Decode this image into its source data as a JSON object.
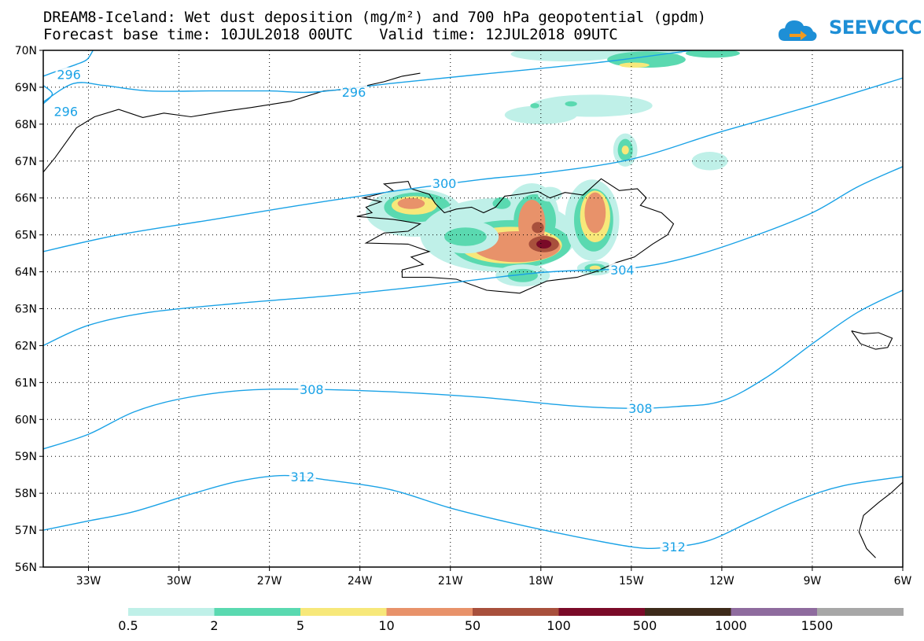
{
  "title": {
    "line1": "DREAM8-Iceland: Wet dust deposition (mg/m²) and 700 hPa geopotential (gpdm)",
    "line2": "Forecast base time: 10JUL2018 00UTC   Valid time: 12JUL2018 09UTC"
  },
  "logo": {
    "text": "SEEVCCC",
    "icon": "cloud-with-arrow-icon",
    "color": "#1e8fd6"
  },
  "map": {
    "lon_range": [
      -34.5,
      -6
    ],
    "lat_range": [
      56,
      70
    ],
    "lat_ticks": [
      "56N",
      "57N",
      "58N",
      "59N",
      "60N",
      "61N",
      "62N",
      "63N",
      "64N",
      "65N",
      "66N",
      "67N",
      "68N",
      "69N",
      "70N"
    ],
    "lon_ticks": [
      "33W",
      "30W",
      "27W",
      "24W",
      "21W",
      "18W",
      "15W",
      "12W",
      "9W",
      "6W"
    ],
    "grid": "dotted",
    "contour_color": "#1aa2e6",
    "contours": [
      {
        "level": "296",
        "points": [
          [
            -34.5,
            68.6
          ],
          [
            -33.5,
            69.1
          ],
          [
            -32.5,
            69.05
          ],
          [
            -31,
            68.9
          ],
          [
            -29,
            68.9
          ],
          [
            -27,
            68.9
          ],
          [
            -25.5,
            68.87
          ],
          [
            -23,
            69.1
          ],
          [
            -20,
            69.35
          ],
          [
            -16,
            69.68
          ],
          [
            -13,
            70
          ]
        ]
      },
      {
        "level": "296",
        "points": [
          [
            -34.5,
            69.3
          ],
          [
            -34,
            69.45
          ],
          [
            -33.4,
            69.62
          ],
          [
            -33.05,
            69.75
          ],
          [
            -32.85,
            70
          ]
        ]
      },
      {
        "level": "296",
        "points": [
          [
            -34.5,
            68.55
          ],
          [
            -34.2,
            68.82
          ],
          [
            -34.5,
            69.05
          ]
        ]
      },
      {
        "level": "300",
        "points": [
          [
            -34.5,
            64.55
          ],
          [
            -32,
            65.0
          ],
          [
            -29,
            65.4
          ],
          [
            -26,
            65.8
          ],
          [
            -23,
            66.17
          ],
          [
            -20,
            66.5
          ],
          [
            -18,
            66.67
          ],
          [
            -15,
            67.05
          ],
          [
            -12,
            67.8
          ],
          [
            -9,
            68.5
          ],
          [
            -6,
            69.25
          ]
        ]
      },
      {
        "level": "304",
        "points": [
          [
            -34.5,
            62.0
          ],
          [
            -33,
            62.55
          ],
          [
            -31,
            62.9
          ],
          [
            -28,
            63.15
          ],
          [
            -25,
            63.35
          ],
          [
            -22,
            63.6
          ],
          [
            -18,
            63.98
          ],
          [
            -15,
            64.1
          ],
          [
            -13,
            64.42
          ],
          [
            -11,
            64.95
          ],
          [
            -9,
            65.6
          ],
          [
            -7.5,
            66.3
          ],
          [
            -6,
            66.85
          ]
        ]
      },
      {
        "level": "308",
        "points": [
          [
            -34.5,
            59.2
          ],
          [
            -33,
            59.6
          ],
          [
            -31.5,
            60.2
          ],
          [
            -30,
            60.55
          ],
          [
            -28,
            60.78
          ],
          [
            -26,
            60.82
          ],
          [
            -23,
            60.75
          ],
          [
            -20,
            60.6
          ],
          [
            -17,
            60.37
          ],
          [
            -15,
            60.3
          ],
          [
            -13.5,
            60.35
          ],
          [
            -12,
            60.5
          ],
          [
            -10.5,
            61.15
          ],
          [
            -9,
            62.05
          ],
          [
            -7.5,
            62.9
          ],
          [
            -6,
            63.5
          ]
        ]
      },
      {
        "level": "312",
        "points": [
          [
            -34.5,
            57.0
          ],
          [
            -33,
            57.25
          ],
          [
            -31.5,
            57.5
          ],
          [
            -29.5,
            58.0
          ],
          [
            -28,
            58.33
          ],
          [
            -26.5,
            58.48
          ],
          [
            -25,
            58.35
          ],
          [
            -23,
            58.1
          ],
          [
            -21,
            57.6
          ],
          [
            -19,
            57.2
          ],
          [
            -17,
            56.85
          ],
          [
            -15,
            56.55
          ],
          [
            -14,
            56.52
          ],
          [
            -12.5,
            56.7
          ],
          [
            -11,
            57.25
          ],
          [
            -9.5,
            57.8
          ],
          [
            -8,
            58.2
          ],
          [
            -6,
            58.45
          ]
        ]
      }
    ],
    "contour_labels": [
      {
        "text": "296",
        "lon": -33.65,
        "lat": 69.35
      },
      {
        "text": "296",
        "lon": -33.75,
        "lat": 68.35
      },
      {
        "text": "296",
        "lon": -24.2,
        "lat": 68.87
      },
      {
        "text": "300",
        "lon": -21.2,
        "lat": 66.4
      },
      {
        "text": "304",
        "lon": -15.3,
        "lat": 64.05
      },
      {
        "text": "308",
        "lon": -25.6,
        "lat": 60.82
      },
      {
        "text": "308",
        "lon": -14.7,
        "lat": 60.3
      },
      {
        "text": "312",
        "lon": -25.9,
        "lat": 58.45
      },
      {
        "text": "312",
        "lon": -13.6,
        "lat": 56.55
      }
    ],
    "deposition": [
      {
        "class": 0,
        "lon": -17.2,
        "lat": 69.9,
        "rlon": 1.8,
        "rlat": 0.2
      },
      {
        "class": 0,
        "lon": -14.8,
        "lat": 69.95,
        "rlon": 1.5,
        "rlat": 0.15
      },
      {
        "class": 1,
        "lon": -12.3,
        "lat": 69.92,
        "rlon": 0.9,
        "rlat": 0.12
      },
      {
        "class": 1,
        "lon": -14.5,
        "lat": 69.75,
        "rlon": 1.3,
        "rlat": 0.22
      },
      {
        "class": 2,
        "lon": -14.9,
        "lat": 69.6,
        "rlon": 0.5,
        "rlat": 0.07
      },
      {
        "class": 0,
        "lon": -16.3,
        "lat": 68.5,
        "rlon": 2.0,
        "rlat": 0.3
      },
      {
        "class": 0,
        "lon": -18.0,
        "lat": 68.25,
        "rlon": 1.2,
        "rlat": 0.25
      },
      {
        "class": 1,
        "lon": -18.2,
        "lat": 68.5,
        "rlon": 0.15,
        "rlat": 0.07
      },
      {
        "class": 1,
        "lon": -17.0,
        "lat": 68.55,
        "rlon": 0.2,
        "rlat": 0.07
      },
      {
        "class": 0,
        "lon": -15.2,
        "lat": 67.3,
        "rlon": 0.4,
        "rlat": 0.45
      },
      {
        "class": 1,
        "lon": -15.2,
        "lat": 67.3,
        "rlon": 0.25,
        "rlat": 0.3
      },
      {
        "class": 2,
        "lon": -15.2,
        "lat": 67.3,
        "rlon": 0.12,
        "rlat": 0.12
      },
      {
        "class": 0,
        "lon": -12.4,
        "lat": 67.0,
        "rlon": 0.6,
        "rlat": 0.25
      },
      {
        "class": 0,
        "lon": -22.2,
        "lat": 65.6,
        "rlon": 1.6,
        "rlat": 0.65
      },
      {
        "class": 1,
        "lon": -22.1,
        "lat": 65.75,
        "rlon": 1.1,
        "rlat": 0.4
      },
      {
        "class": 2,
        "lon": -22.2,
        "lat": 65.8,
        "rlon": 0.75,
        "rlat": 0.25
      },
      {
        "class": 3,
        "lon": -22.3,
        "lat": 65.85,
        "rlon": 0.45,
        "rlat": 0.15
      },
      {
        "class": 0,
        "lon": -19.4,
        "lat": 65.0,
        "rlon": 2.6,
        "rlat": 1.0
      },
      {
        "class": 0,
        "lon": -18.3,
        "lat": 65.5,
        "rlon": 0.9,
        "rlat": 0.9
      },
      {
        "class": 1,
        "lon": -19.0,
        "lat": 64.75,
        "rlon": 2.0,
        "rlat": 0.65
      },
      {
        "class": 1,
        "lon": -18.2,
        "lat": 65.4,
        "rlon": 0.7,
        "rlat": 0.7
      },
      {
        "class": 2,
        "lon": -19.0,
        "lat": 64.72,
        "rlon": 1.7,
        "rlat": 0.5
      },
      {
        "class": 3,
        "lon": -18.8,
        "lat": 64.68,
        "rlon": 1.45,
        "rlat": 0.42
      },
      {
        "class": 3,
        "lon": -18.3,
        "lat": 65.3,
        "rlon": 0.45,
        "rlat": 0.65
      },
      {
        "class": 4,
        "lon": -18.1,
        "lat": 65.2,
        "rlon": 0.2,
        "rlat": 0.15
      },
      {
        "class": 4,
        "lon": -17.9,
        "lat": 64.75,
        "rlon": 0.5,
        "rlat": 0.22
      },
      {
        "class": 5,
        "lon": -17.9,
        "lat": 64.75,
        "rlon": 0.25,
        "rlat": 0.12
      },
      {
        "class": 0,
        "lon": -20.5,
        "lat": 64.95,
        "rlon": 1.1,
        "rlat": 0.45
      },
      {
        "class": 1,
        "lon": -20.5,
        "lat": 64.95,
        "rlon": 0.7,
        "rlat": 0.25
      },
      {
        "class": 0,
        "lon": -16.3,
        "lat": 65.4,
        "rlon": 0.9,
        "rlat": 1.1
      },
      {
        "class": 1,
        "lon": -16.25,
        "lat": 65.4,
        "rlon": 0.65,
        "rlat": 0.85
      },
      {
        "class": 2,
        "lon": -16.2,
        "lat": 65.5,
        "rlon": 0.5,
        "rlat": 0.7
      },
      {
        "class": 3,
        "lon": -16.2,
        "lat": 65.6,
        "rlon": 0.35,
        "rlat": 0.55
      },
      {
        "class": 0,
        "lon": -16.2,
        "lat": 64.1,
        "rlon": 0.6,
        "rlat": 0.2
      },
      {
        "class": 1,
        "lon": -16.2,
        "lat": 64.1,
        "rlon": 0.35,
        "rlat": 0.12
      },
      {
        "class": 2,
        "lon": -16.2,
        "lat": 64.1,
        "rlon": 0.18,
        "rlat": 0.07
      },
      {
        "class": 0,
        "lon": -18.6,
        "lat": 63.9,
        "rlon": 0.9,
        "rlat": 0.3
      },
      {
        "class": 1,
        "lon": -18.6,
        "lat": 63.9,
        "rlon": 0.5,
        "rlat": 0.18
      },
      {
        "class": 0,
        "lon": -17.7,
        "lat": 66.1,
        "rlon": 0.4,
        "rlat": 0.2
      },
      {
        "class": 1,
        "lon": -19.3,
        "lat": 65.85,
        "rlon": 0.3,
        "rlat": 0.15
      },
      {
        "class": 1,
        "lon": -19.3,
        "lat": 65.9,
        "rlon": 0.25,
        "rlat": 0.12
      }
    ],
    "coastlines": [
      {
        "name": "iceland",
        "points": [
          [
            -24.1,
            65.5
          ],
          [
            -23.6,
            65.6
          ],
          [
            -23.8,
            65.75
          ],
          [
            -23.3,
            65.9
          ],
          [
            -23.9,
            66.0
          ],
          [
            -22.9,
            66.2
          ],
          [
            -23.2,
            66.38
          ],
          [
            -22.4,
            66.45
          ],
          [
            -22.3,
            66.25
          ],
          [
            -21.7,
            66.1
          ],
          [
            -21.5,
            65.85
          ],
          [
            -21.2,
            65.6
          ],
          [
            -20.8,
            65.7
          ],
          [
            -20.3,
            65.75
          ],
          [
            -19.9,
            65.6
          ],
          [
            -19.5,
            65.75
          ],
          [
            -19.2,
            66.05
          ],
          [
            -18.7,
            66.1
          ],
          [
            -18.1,
            66.18
          ],
          [
            -17.7,
            66.0
          ],
          [
            -17.2,
            66.15
          ],
          [
            -16.6,
            66.08
          ],
          [
            -16.0,
            66.52
          ],
          [
            -15.4,
            66.2
          ],
          [
            -14.8,
            66.25
          ],
          [
            -14.5,
            66.0
          ],
          [
            -14.7,
            65.8
          ],
          [
            -14.0,
            65.6
          ],
          [
            -13.6,
            65.3
          ],
          [
            -13.8,
            65.0
          ],
          [
            -14.3,
            64.75
          ],
          [
            -14.9,
            64.4
          ],
          [
            -15.5,
            64.25
          ],
          [
            -16.2,
            64.0
          ],
          [
            -16.8,
            63.85
          ],
          [
            -17.8,
            63.75
          ],
          [
            -18.7,
            63.42
          ],
          [
            -19.8,
            63.5
          ],
          [
            -20.8,
            63.8
          ],
          [
            -21.7,
            63.85
          ],
          [
            -22.6,
            63.85
          ],
          [
            -22.6,
            64.05
          ],
          [
            -21.9,
            64.2
          ],
          [
            -22.3,
            64.4
          ],
          [
            -21.7,
            64.55
          ],
          [
            -22.4,
            64.75
          ],
          [
            -23.8,
            64.78
          ],
          [
            -23.2,
            65.05
          ],
          [
            -22.4,
            65.1
          ],
          [
            -22.0,
            65.3
          ],
          [
            -22.9,
            65.42
          ],
          [
            -24.1,
            65.5
          ]
        ]
      },
      {
        "name": "greenland",
        "points": [
          [
            -34.5,
            66.7
          ],
          [
            -34.1,
            67.1
          ],
          [
            -33.4,
            67.9
          ],
          [
            -32.8,
            68.2
          ],
          [
            -32.0,
            68.4
          ],
          [
            -31.2,
            68.18
          ],
          [
            -30.5,
            68.3
          ],
          [
            -29.6,
            68.2
          ],
          [
            -28.5,
            68.35
          ],
          [
            -27.6,
            68.45
          ],
          [
            -26.3,
            68.62
          ],
          [
            -25.2,
            68.9
          ],
          [
            -24.3,
            68.95
          ],
          [
            -23.2,
            69.15
          ],
          [
            -22.6,
            69.3
          ],
          [
            -22.0,
            69.38
          ]
        ]
      },
      {
        "name": "norway",
        "points": [
          [
            -6,
            58.3
          ],
          [
            -6.4,
            58.0
          ],
          [
            -6.8,
            57.75
          ],
          [
            -7.3,
            57.4
          ],
          [
            -7.45,
            56.95
          ],
          [
            -7.2,
            56.5
          ],
          [
            -6.9,
            56.25
          ]
        ]
      },
      {
        "name": "faroes",
        "points": [
          [
            -7.7,
            62.4
          ],
          [
            -7.3,
            62.32
          ],
          [
            -6.8,
            62.35
          ],
          [
            -6.35,
            62.2
          ],
          [
            -6.5,
            61.95
          ],
          [
            -6.9,
            61.9
          ],
          [
            -7.4,
            62.05
          ],
          [
            -7.7,
            62.4
          ]
        ]
      }
    ]
  },
  "legend": {
    "colors": [
      "#bff0e8",
      "#5ad9b0",
      "#f7e87a",
      "#e8926a",
      "#a8503c",
      "#7a0a28",
      "#3d2a1a",
      "#8e6b9e",
      "#a7a7a7"
    ],
    "labels": [
      "0.5",
      "2",
      "5",
      "10",
      "50",
      "100",
      "500",
      "1000",
      "1500"
    ]
  }
}
